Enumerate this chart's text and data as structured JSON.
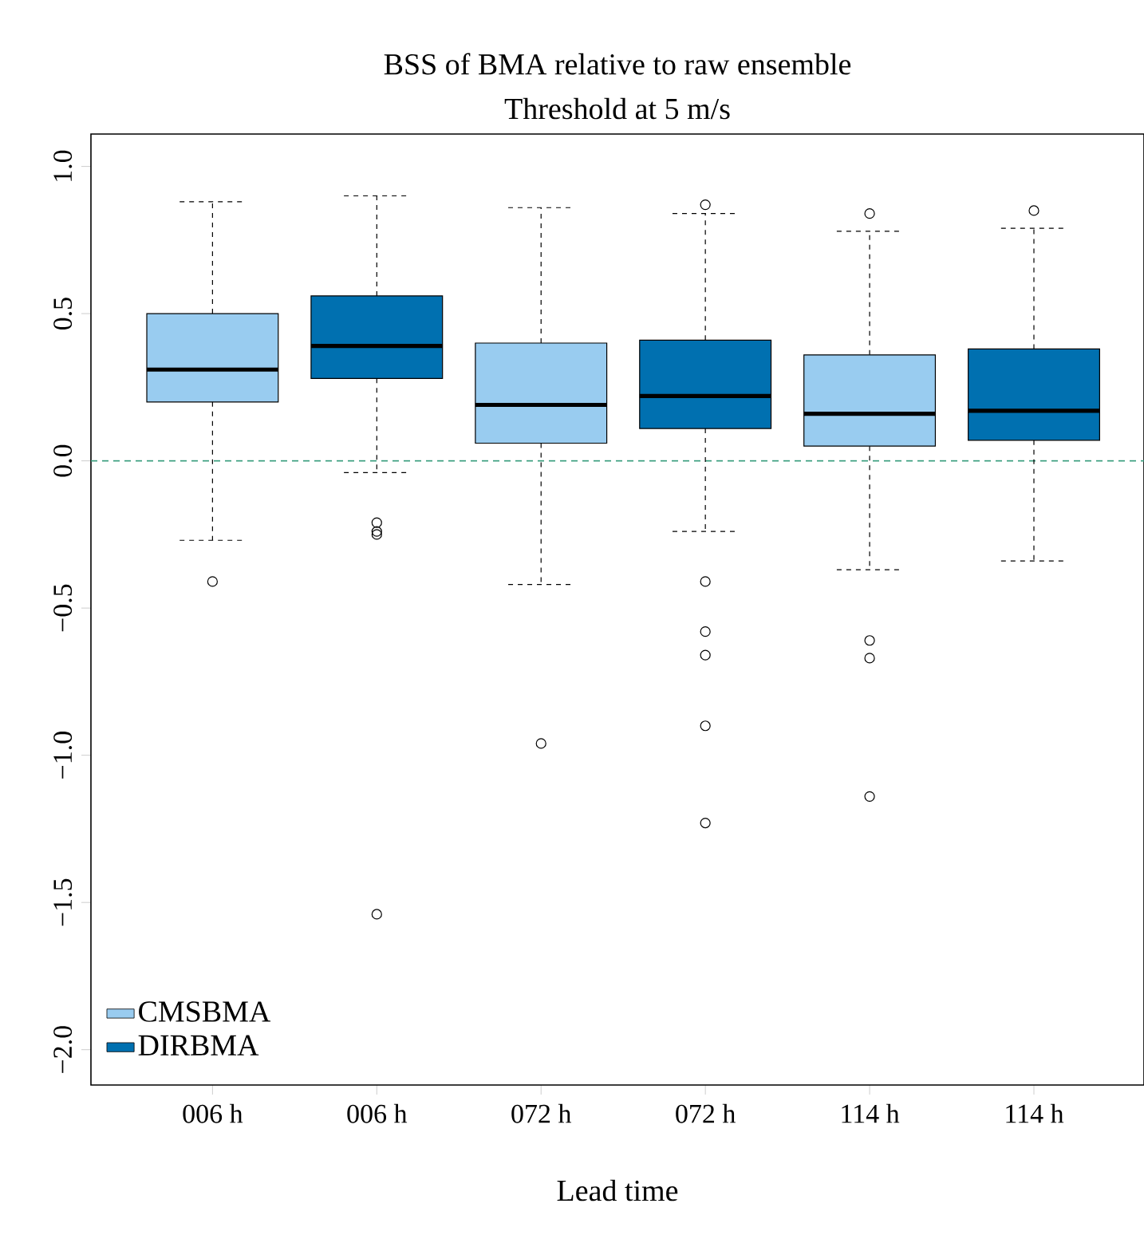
{
  "chart_data": {
    "type": "box",
    "title": "BSS of BMA relative to raw ensemble",
    "subtitle": "Threshold at 5 m/s",
    "xlabel": "Lead time",
    "categories": [
      "006 h",
      "006 h",
      "072 h",
      "072 h",
      "114 h",
      "114 h"
    ],
    "series": [
      {
        "name": "CMSBMA",
        "color": "#99ccf0",
        "boxes": [
          {
            "low": -0.27,
            "q1": 0.2,
            "median": 0.31,
            "q3": 0.5,
            "high": 0.88,
            "outliers": [
              -0.41
            ]
          },
          null,
          {
            "low": -0.42,
            "q1": 0.06,
            "median": 0.19,
            "q3": 0.4,
            "high": 0.86,
            "outliers": [
              -0.96
            ]
          },
          null,
          {
            "low": -0.37,
            "q1": 0.05,
            "median": 0.16,
            "q3": 0.36,
            "high": 0.78,
            "outliers": [
              0.84,
              -0.61,
              -0.67,
              -1.14
            ]
          },
          null
        ]
      },
      {
        "name": "DIRBMA",
        "color": "#0070b0",
        "boxes": [
          null,
          {
            "low": -0.04,
            "q1": 0.28,
            "median": 0.39,
            "q3": 0.56,
            "high": 0.9,
            "outliers": [
              -0.21,
              -0.24,
              -0.25,
              -1.54
            ]
          },
          null,
          {
            "low": -0.24,
            "q1": 0.11,
            "median": 0.22,
            "q3": 0.41,
            "high": 0.84,
            "outliers": [
              0.87,
              -0.41,
              -0.58,
              -0.66,
              -0.9,
              -1.23
            ]
          },
          null,
          {
            "low": -0.34,
            "q1": 0.07,
            "median": 0.17,
            "q3": 0.38,
            "high": 0.79,
            "outliers": [
              0.85
            ]
          }
        ]
      }
    ],
    "ylim": [
      -2.12,
      1.11
    ],
    "yticks": [
      {
        "value": -2,
        "label": "−2.0"
      },
      {
        "value": -1.5,
        "label": "−1.5"
      },
      {
        "value": -1,
        "label": "−1.0"
      },
      {
        "value": -0.5,
        "label": "−0.5"
      },
      {
        "value": 0,
        "label": "0.0"
      },
      {
        "value": 0.5,
        "label": "0.5"
      },
      {
        "value": 1,
        "label": "1.0"
      }
    ],
    "ref_lines": [
      {
        "axis": "y",
        "value": 0,
        "color": "#3a9e7e",
        "line_style": "dashed"
      }
    ],
    "legend": "bottom left"
  }
}
